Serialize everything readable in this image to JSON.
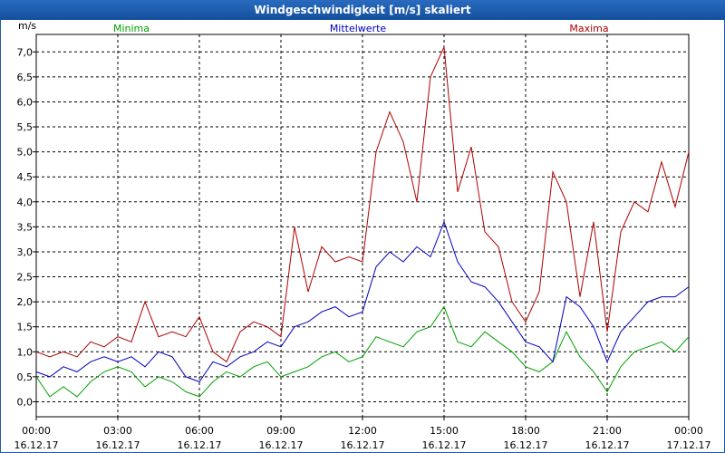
{
  "window": {
    "title": "Windgeschwindigkeit [m/s] skaliert"
  },
  "colors": {
    "minima": "#00a000",
    "mittel": "#0000c0",
    "maxima": "#b00000",
    "grid": "#000000",
    "title_bg": "#1c5bb0"
  },
  "chart_data": {
    "type": "line",
    "title": "Windgeschwindigkeit [m/s] skaliert",
    "ylabel": "m/s",
    "xlabel": "",
    "ylim": [
      -0.3,
      7.35
    ],
    "xlim": [
      0,
      24
    ],
    "grid": true,
    "y_ticks": [
      "0,0",
      "0,5",
      "1,0",
      "1,5",
      "2,0",
      "2,5",
      "3,0",
      "3,5",
      "4,0",
      "4,5",
      "5,0",
      "5,5",
      "6,0",
      "6,5",
      "7,0"
    ],
    "x_ticks": [
      {
        "time": "00:00",
        "date": "16.12.17"
      },
      {
        "time": "03:00",
        "date": "16.12.17"
      },
      {
        "time": "06:00",
        "date": "16.12.17"
      },
      {
        "time": "09:00",
        "date": "16.12.17"
      },
      {
        "time": "12:00",
        "date": "16.12.17"
      },
      {
        "time": "15:00",
        "date": "16.12.17"
      },
      {
        "time": "18:00",
        "date": "16.12.17"
      },
      {
        "time": "21:00",
        "date": "16.12.17"
      },
      {
        "time": "00:00",
        "date": "17.12.17"
      }
    ],
    "series": [
      {
        "name": "Minima",
        "x": [
          0,
          0.5,
          1,
          1.5,
          2,
          2.5,
          3,
          3.5,
          4,
          4.5,
          5,
          5.5,
          6,
          6.5,
          7,
          7.5,
          8,
          8.5,
          9,
          9.5,
          10,
          10.5,
          11,
          11.5,
          12,
          12.5,
          13,
          13.5,
          14,
          14.5,
          15,
          15.5,
          16,
          16.5,
          17,
          17.5,
          18,
          18.5,
          19,
          19.5,
          20,
          20.5,
          21,
          21.5,
          22,
          22.5,
          23,
          23.5,
          24
        ],
        "values": [
          0.5,
          0.1,
          0.3,
          0.1,
          0.4,
          0.6,
          0.7,
          0.6,
          0.3,
          0.5,
          0.4,
          0.2,
          0.1,
          0.4,
          0.6,
          0.5,
          0.7,
          0.8,
          0.5,
          0.6,
          0.7,
          0.9,
          1.0,
          0.8,
          0.9,
          1.3,
          1.2,
          1.1,
          1.4,
          1.5,
          1.9,
          1.2,
          1.1,
          1.4,
          1.2,
          1.0,
          0.7,
          0.6,
          0.8,
          1.4,
          0.9,
          0.6,
          0.2,
          0.7,
          1.0,
          1.1,
          1.2,
          1.0,
          1.3
        ]
      },
      {
        "name": "Mittelwerte",
        "x": [
          0,
          0.5,
          1,
          1.5,
          2,
          2.5,
          3,
          3.5,
          4,
          4.5,
          5,
          5.5,
          6,
          6.5,
          7,
          7.5,
          8,
          8.5,
          9,
          9.5,
          10,
          10.5,
          11,
          11.5,
          12,
          12.5,
          13,
          13.5,
          14,
          14.5,
          15,
          15.5,
          16,
          16.5,
          17,
          17.5,
          18,
          18.5,
          19,
          19.5,
          20,
          20.5,
          21,
          21.5,
          22,
          22.5,
          23,
          23.5,
          24
        ],
        "values": [
          0.6,
          0.5,
          0.7,
          0.6,
          0.8,
          0.9,
          0.8,
          0.9,
          0.7,
          1.0,
          0.9,
          0.5,
          0.4,
          0.8,
          0.7,
          0.9,
          1.0,
          1.2,
          1.1,
          1.5,
          1.6,
          1.8,
          1.9,
          1.7,
          1.8,
          2.7,
          3.0,
          2.8,
          3.1,
          2.9,
          3.6,
          2.8,
          2.4,
          2.3,
          2.0,
          1.6,
          1.2,
          1.1,
          0.8,
          2.1,
          1.9,
          1.5,
          0.8,
          1.4,
          1.7,
          2.0,
          2.1,
          2.1,
          2.3
        ]
      },
      {
        "name": "Maxima",
        "x": [
          0,
          0.5,
          1,
          1.5,
          2,
          2.5,
          3,
          3.5,
          4,
          4.5,
          5,
          5.5,
          6,
          6.5,
          7,
          7.5,
          8,
          8.5,
          9,
          9.5,
          10,
          10.5,
          11,
          11.5,
          12,
          12.5,
          13,
          13.5,
          14,
          14.5,
          15,
          15.5,
          16,
          16.5,
          17,
          17.5,
          18,
          18.5,
          19,
          19.5,
          20,
          20.5,
          21,
          21.5,
          22,
          22.5,
          23,
          23.5,
          24
        ],
        "values": [
          1.0,
          0.9,
          1.0,
          0.9,
          1.2,
          1.1,
          1.3,
          1.2,
          2.0,
          1.3,
          1.4,
          1.3,
          1.7,
          1.0,
          0.8,
          1.4,
          1.6,
          1.5,
          1.3,
          3.5,
          2.2,
          3.1,
          2.8,
          2.9,
          2.8,
          5.0,
          5.8,
          5.2,
          4.0,
          6.5,
          7.1,
          4.2,
          5.1,
          3.4,
          3.1,
          2.0,
          1.6,
          2.2,
          4.6,
          4.0,
          2.1,
          3.6,
          1.4,
          3.4,
          4.0,
          3.8,
          4.8,
          3.9,
          5.0
        ]
      }
    ]
  }
}
